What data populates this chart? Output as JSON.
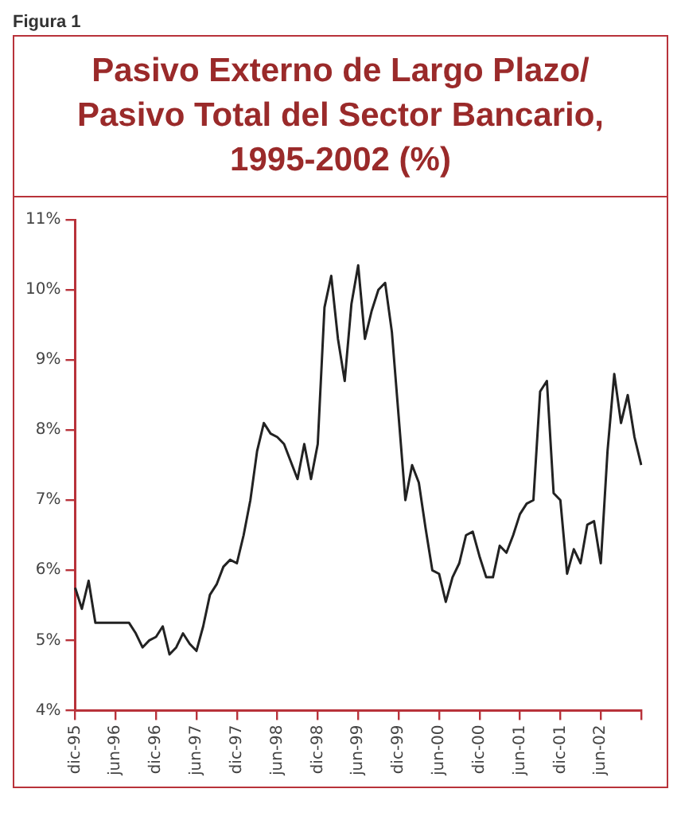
{
  "chart_data": {
    "type": "line",
    "title": "Pasivo Externo de Largo Plazo/ Pasivo Total del Sector Bancario, 1995-2002 (%)",
    "annotations": [
      "Figura 1"
    ],
    "categories": [
      "dic-95",
      null,
      null,
      null,
      null,
      null,
      "jun-96",
      null,
      null,
      null,
      null,
      null,
      "dic-96",
      null,
      null,
      null,
      null,
      null,
      "jun-97",
      null,
      null,
      null,
      null,
      null,
      "dic-97",
      null,
      null,
      null,
      null,
      null,
      "jun-98",
      null,
      null,
      null,
      null,
      null,
      "dic-98",
      null,
      null,
      null,
      null,
      null,
      "jun-99",
      null,
      null,
      null,
      null,
      null,
      "dic-99",
      null,
      null,
      null,
      null,
      null,
      "jun-00",
      null,
      null,
      null,
      null,
      null,
      "dic-00",
      null,
      null,
      null,
      null,
      null,
      "jun-01",
      null,
      null,
      null,
      null,
      null,
      "dic-01",
      null,
      null,
      null,
      null,
      null,
      "jun-02",
      null,
      null,
      null,
      null,
      null,
      null
    ],
    "series": [
      {
        "color": "#222222",
        "values": [
          5.75,
          5.45,
          5.85,
          5.25,
          5.25,
          5.25,
          5.25,
          5.25,
          5.25,
          5.1,
          4.9,
          5.0,
          5.05,
          5.2,
          4.8,
          4.9,
          5.1,
          4.95,
          4.85,
          5.2,
          5.65,
          5.8,
          6.05,
          6.15,
          6.1,
          6.5,
          7.0,
          7.7,
          8.1,
          7.95,
          7.9,
          7.8,
          7.55,
          7.3,
          7.8,
          7.3,
          7.8,
          9.75,
          10.2,
          9.3,
          8.7,
          9.8,
          10.35,
          9.3,
          9.7,
          10.0,
          10.1,
          9.4,
          8.2,
          7.0,
          7.5,
          7.25,
          6.6,
          6.0,
          5.95,
          5.55,
          5.9,
          6.1,
          6.5,
          6.55,
          6.2,
          5.9,
          5.9,
          6.35,
          6.25,
          6.5,
          6.8,
          6.95,
          7.0,
          8.55,
          8.7,
          7.1,
          7.0,
          5.95,
          6.3,
          6.1,
          6.65,
          6.7,
          6.1,
          7.7,
          8.8,
          8.1,
          8.5,
          7.9,
          7.5
        ]
      }
    ],
    "ylim": [
      4,
      11
    ],
    "yticks": [
      {
        "value": 4,
        "label": "4%"
      },
      {
        "value": 5,
        "label": "5%"
      },
      {
        "value": 6,
        "label": "6%"
      },
      {
        "value": 7,
        "label": "7%"
      },
      {
        "value": 8,
        "label": "8%"
      },
      {
        "value": 9,
        "label": "9%"
      },
      {
        "value": 10,
        "label": "10%"
      },
      {
        "value": 11,
        "label": "11%"
      }
    ],
    "grid": false,
    "legend": false,
    "marker": "none",
    "line_style": "solid"
  }
}
